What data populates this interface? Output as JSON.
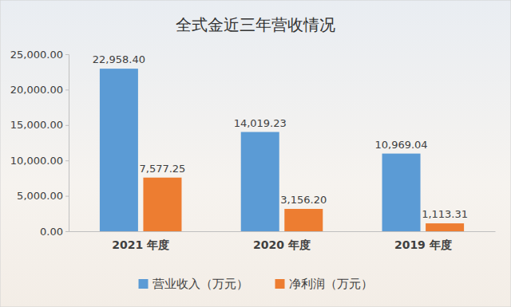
{
  "chart_data": {
    "type": "bar",
    "title": "全式金近三年营收情况",
    "categories": [
      "2021 年度",
      "2020 年度",
      "2019 年度"
    ],
    "series": [
      {
        "name": "营业收入（万元）",
        "color": "#5b9bd5",
        "values": [
          22958.4,
          14019.23,
          10969.04
        ],
        "value_labels": [
          "22,958.40",
          "14,019.23",
          "10,969.04"
        ]
      },
      {
        "name": "净利润（万元）",
        "color": "#ed7d31",
        "values": [
          7577.25,
          3156.2,
          1113.31
        ],
        "value_labels": [
          "7,577.25",
          "3,156.20",
          "1,113.31"
        ]
      }
    ],
    "ylim": [
      0,
      25000
    ],
    "yticks": [
      {
        "value": 0,
        "label": "0.00"
      },
      {
        "value": 5000,
        "label": "5,000.00"
      },
      {
        "value": 10000,
        "label": "10,000.00"
      },
      {
        "value": 15000,
        "label": "15,000.00"
      },
      {
        "value": 20000,
        "label": "20,000.00"
      },
      {
        "value": 25000,
        "label": "25,000.00"
      }
    ],
    "grid": false,
    "data_labels": true,
    "legend": "bottom"
  }
}
